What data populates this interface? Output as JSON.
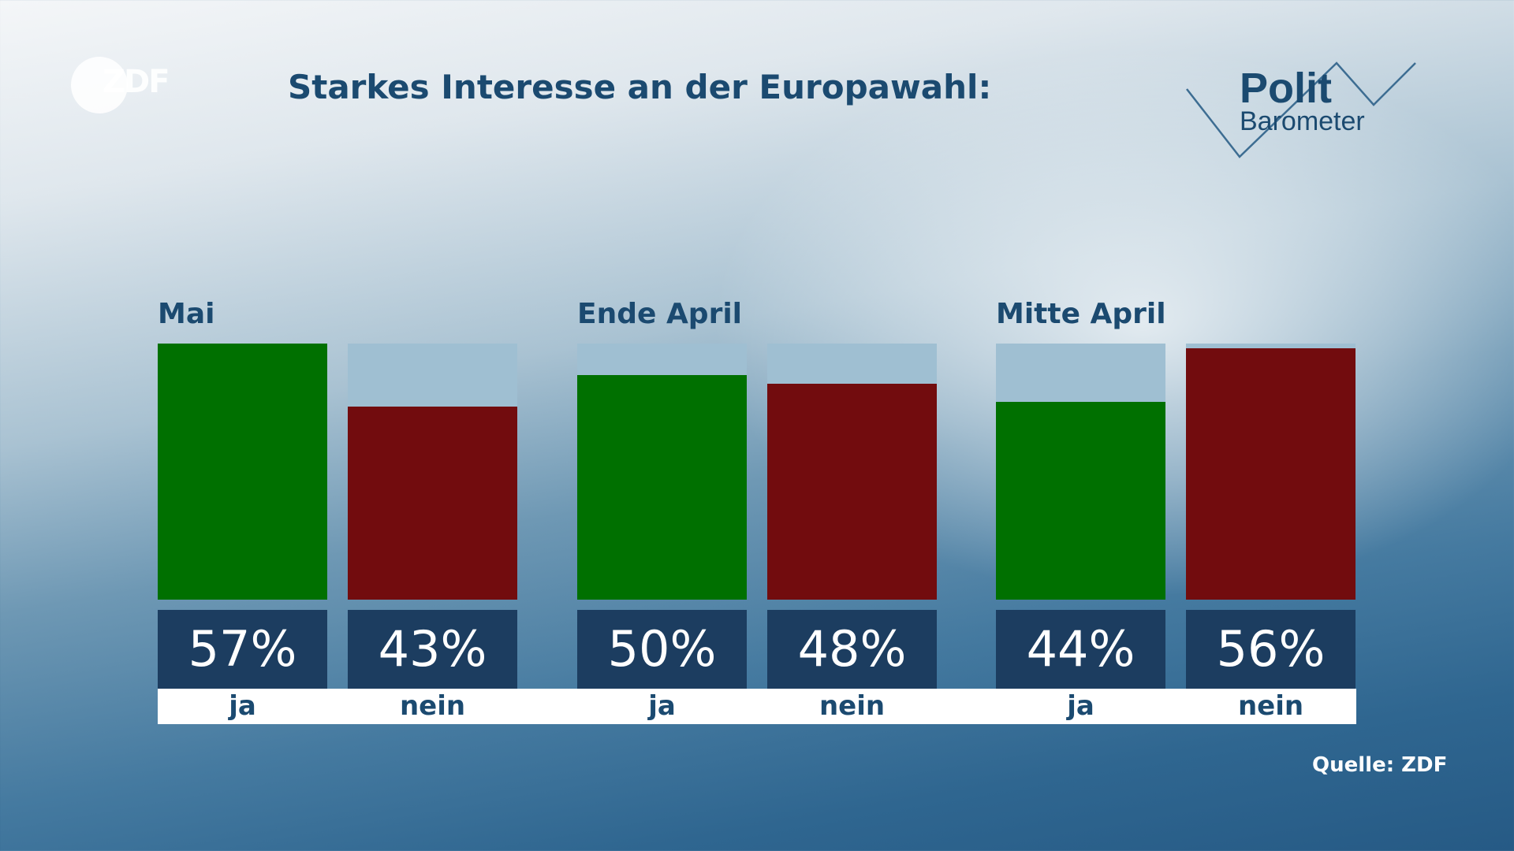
{
  "header": {
    "title": "Starkes Interesse an der Europawahl:",
    "zdf_logo_text": "ZDF",
    "politbarometer_line1": "Polit",
    "politbarometer_line2": "Barometer"
  },
  "footer": {
    "source": "Quelle: ZDF"
  },
  "colors": {
    "ja": "#007000",
    "nein": "#720c0e",
    "track": "#9fbfd2",
    "value_box": "#1c3d60",
    "text_dark": "#1b4a70"
  },
  "chart_data": {
    "type": "bar",
    "title": "Starkes Interesse an der Europawahl:",
    "categories": [
      "ja",
      "nein"
    ],
    "ylim": [
      0,
      57
    ],
    "grid": false,
    "legend": "none",
    "groups": [
      {
        "name": "Mai",
        "bars": [
          {
            "category": "ja",
            "value": 57,
            "label": "57%"
          },
          {
            "category": "nein",
            "value": 43,
            "label": "43%"
          }
        ]
      },
      {
        "name": "Ende April",
        "bars": [
          {
            "category": "ja",
            "value": 50,
            "label": "50%"
          },
          {
            "category": "nein",
            "value": 48,
            "label": "48%"
          }
        ]
      },
      {
        "name": "Mitte April",
        "bars": [
          {
            "category": "ja",
            "value": 44,
            "label": "44%"
          },
          {
            "category": "nein",
            "value": 56,
            "label": "56%"
          }
        ]
      }
    ]
  }
}
